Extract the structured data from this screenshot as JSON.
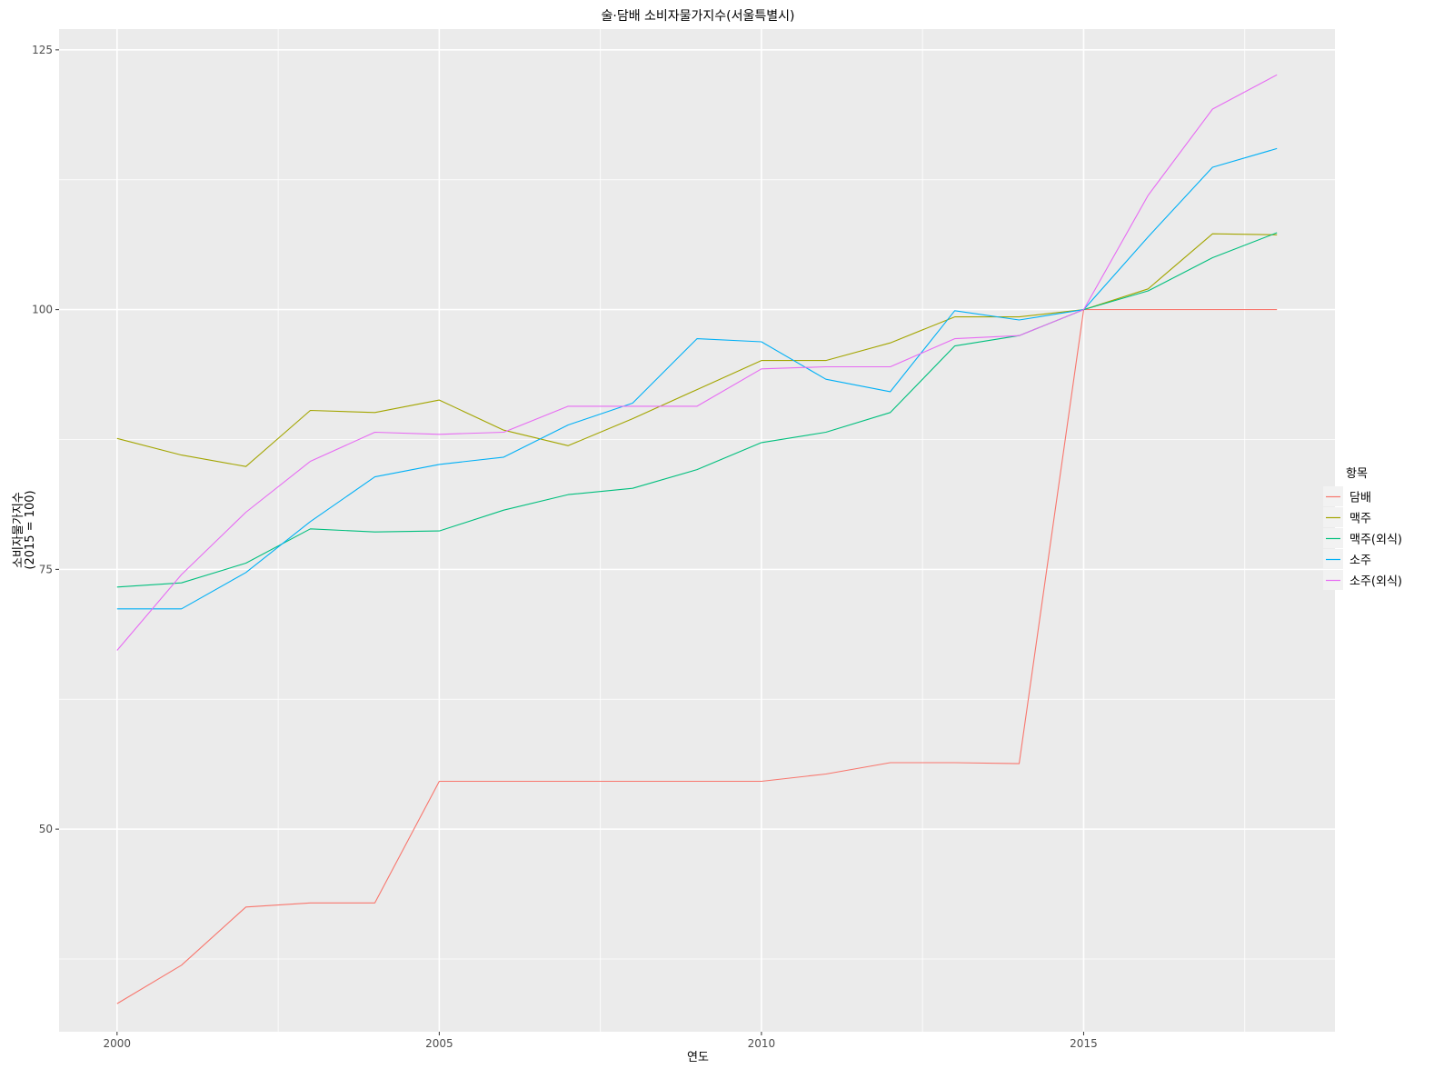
{
  "chart_data": {
    "type": "line",
    "title": "술·담배 소비자물가지수(서울특별시)",
    "xlabel": "연도",
    "ylabel": "소비자물가지수",
    "ylabel_sub": "(2015 = 100)",
    "legend_title": "항목",
    "legend_position": "right",
    "grid": true,
    "xlim": [
      1999.1,
      2018.9
    ],
    "ylim": [
      30.5,
      127
    ],
    "x_ticks": [
      2000,
      2005,
      2010,
      2015
    ],
    "y_ticks": [
      50,
      75,
      100,
      125
    ],
    "x": [
      2000,
      2001,
      2002,
      2003,
      2004,
      2005,
      2006,
      2007,
      2008,
      2009,
      2010,
      2011,
      2012,
      2013,
      2014,
      2015,
      2016,
      2017,
      2018
    ],
    "series": [
      {
        "name": "담배",
        "color": "#F8766D",
        "values": [
          33.2,
          36.9,
          42.5,
          42.9,
          42.9,
          54.6,
          54.6,
          54.6,
          54.6,
          54.6,
          54.6,
          55.3,
          56.4,
          56.4,
          56.3,
          100.0,
          100.0,
          100.0,
          100.0
        ]
      },
      {
        "name": "맥주",
        "color": "#A3A500",
        "values": [
          87.6,
          86.0,
          84.9,
          90.3,
          90.1,
          91.3,
          88.4,
          86.9,
          89.5,
          92.3,
          95.1,
          95.1,
          96.8,
          99.3,
          99.3,
          100.0,
          102.0,
          107.3,
          107.2
        ]
      },
      {
        "name": "맥주(외식)",
        "color": "#00BF7D",
        "values": [
          73.3,
          73.7,
          75.6,
          78.9,
          78.6,
          78.7,
          80.7,
          82.2,
          82.8,
          84.6,
          87.2,
          88.2,
          90.1,
          96.5,
          97.5,
          100.0,
          101.8,
          105.0,
          107.4
        ]
      },
      {
        "name": "소주",
        "color": "#00B0F6",
        "values": [
          71.2,
          71.2,
          74.7,
          79.6,
          83.9,
          85.1,
          85.8,
          88.9,
          91.0,
          97.2,
          96.9,
          93.3,
          92.1,
          99.9,
          99.0,
          100.0,
          107.0,
          113.7,
          115.5
        ]
      },
      {
        "name": "소주(외식)",
        "color": "#E76BF3",
        "values": [
          67.2,
          74.5,
          80.5,
          85.4,
          88.2,
          88.0,
          88.2,
          90.7,
          90.7,
          90.7,
          94.3,
          94.5,
          94.5,
          97.2,
          97.5,
          100.0,
          111.0,
          119.3,
          122.6
        ]
      }
    ]
  }
}
